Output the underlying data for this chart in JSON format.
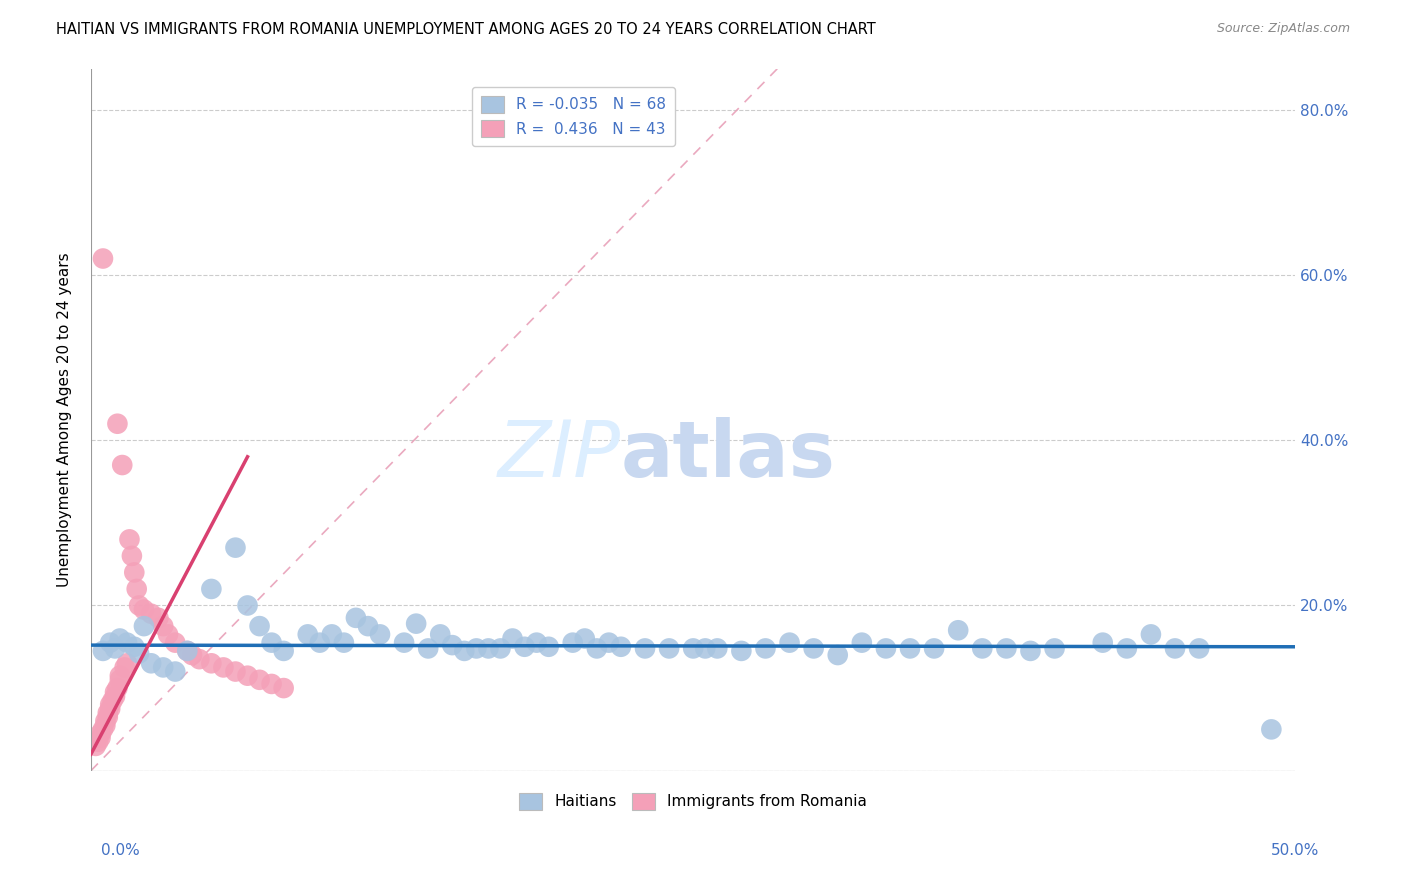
{
  "title": "HAITIAN VS IMMIGRANTS FROM ROMANIA UNEMPLOYMENT AMONG AGES 20 TO 24 YEARS CORRELATION CHART",
  "source": "Source: ZipAtlas.com",
  "ylabel": "Unemployment Among Ages 20 to 24 years",
  "xlim": [
    0.0,
    0.5
  ],
  "ylim": [
    0.0,
    0.85
  ],
  "yticks": [
    0.0,
    0.2,
    0.4,
    0.6,
    0.8
  ],
  "ytick_labels": [
    "",
    "20.0%",
    "40.0%",
    "60.0%",
    "80.0%"
  ],
  "xtick_left": "0.0%",
  "xtick_right": "50.0%",
  "legend_r_blue": "-0.035",
  "legend_n_blue": "68",
  "legend_r_pink": "0.436",
  "legend_n_pink": "43",
  "blue_color": "#a8c4e0",
  "pink_color": "#f4a0b8",
  "trend_blue_color": "#1f6eb5",
  "trend_pink_color": "#d94070",
  "trend_dashed_color": "#e8a0b8",
  "watermark_color": "#dceeff",
  "title_fontsize": 10.5,
  "source_fontsize": 9,
  "axis_label_color": "#4472c4",
  "blue_x": [
    0.008,
    0.012,
    0.018,
    0.005,
    0.022,
    0.015,
    0.01,
    0.02,
    0.025,
    0.03,
    0.035,
    0.04,
    0.05,
    0.06,
    0.065,
    0.07,
    0.075,
    0.08,
    0.09,
    0.095,
    0.1,
    0.105,
    0.11,
    0.115,
    0.12,
    0.13,
    0.135,
    0.14,
    0.145,
    0.15,
    0.155,
    0.16,
    0.165,
    0.17,
    0.175,
    0.18,
    0.185,
    0.19,
    0.2,
    0.205,
    0.21,
    0.215,
    0.22,
    0.23,
    0.24,
    0.25,
    0.255,
    0.26,
    0.27,
    0.28,
    0.29,
    0.3,
    0.31,
    0.32,
    0.33,
    0.34,
    0.35,
    0.36,
    0.37,
    0.38,
    0.39,
    0.4,
    0.42,
    0.43,
    0.44,
    0.45,
    0.46,
    0.49
  ],
  "blue_y": [
    0.155,
    0.16,
    0.15,
    0.145,
    0.175,
    0.155,
    0.148,
    0.142,
    0.13,
    0.125,
    0.12,
    0.145,
    0.22,
    0.27,
    0.2,
    0.175,
    0.155,
    0.145,
    0.165,
    0.155,
    0.165,
    0.155,
    0.185,
    0.175,
    0.165,
    0.155,
    0.178,
    0.148,
    0.165,
    0.152,
    0.145,
    0.148,
    0.148,
    0.148,
    0.16,
    0.15,
    0.155,
    0.15,
    0.155,
    0.16,
    0.148,
    0.155,
    0.15,
    0.148,
    0.148,
    0.148,
    0.148,
    0.148,
    0.145,
    0.148,
    0.155,
    0.148,
    0.14,
    0.155,
    0.148,
    0.148,
    0.148,
    0.17,
    0.148,
    0.148,
    0.145,
    0.148,
    0.155,
    0.148,
    0.165,
    0.148,
    0.148,
    0.05
  ],
  "pink_x": [
    0.002,
    0.003,
    0.004,
    0.004,
    0.005,
    0.005,
    0.006,
    0.006,
    0.007,
    0.007,
    0.008,
    0.008,
    0.009,
    0.01,
    0.01,
    0.011,
    0.011,
    0.012,
    0.012,
    0.013,
    0.014,
    0.015,
    0.016,
    0.017,
    0.018,
    0.019,
    0.02,
    0.022,
    0.025,
    0.028,
    0.03,
    0.032,
    0.035,
    0.04,
    0.042,
    0.045,
    0.05,
    0.055,
    0.06,
    0.065,
    0.07,
    0.075,
    0.08
  ],
  "pink_y": [
    0.03,
    0.035,
    0.04,
    0.045,
    0.05,
    0.62,
    0.055,
    0.06,
    0.065,
    0.07,
    0.075,
    0.08,
    0.085,
    0.09,
    0.095,
    0.1,
    0.42,
    0.11,
    0.115,
    0.37,
    0.125,
    0.13,
    0.28,
    0.26,
    0.24,
    0.22,
    0.2,
    0.195,
    0.19,
    0.185,
    0.175,
    0.165,
    0.155,
    0.145,
    0.14,
    0.135,
    0.13,
    0.125,
    0.12,
    0.115,
    0.11,
    0.105,
    0.1
  ],
  "pink_trend_x0": 0.0,
  "pink_trend_x1": 0.065,
  "blue_trend_x0": 0.0,
  "blue_trend_x1": 0.5
}
